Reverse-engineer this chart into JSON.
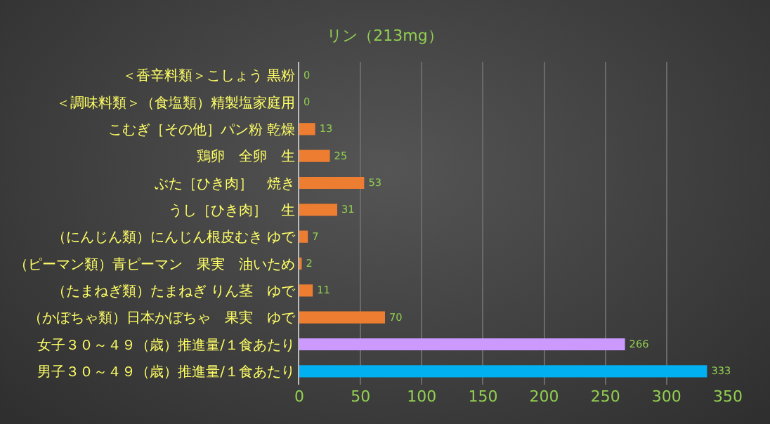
{
  "chart_data": {
    "type": "bar",
    "orientation": "horizontal",
    "title": "リン（213mg）",
    "categories": [
      "＜香辛料類＞こしょう 黒粉",
      "＜調味料類＞（食塩類）精製塩家庭用",
      "こむぎ［その他］パン粉 乾燥",
      "鶏卵　全卵　生",
      "ぶた［ひき肉］　焼き",
      "うし［ひき肉］　生",
      "（にんじん類）にんじん根皮むき ゆで",
      "（ピーマン類）青ピーマン　果実　油いため",
      "（たまねぎ類）たまねぎ りん茎　ゆで",
      "（かぼちゃ類）日本かぼちゃ　果実　ゆで",
      "女子３０～４９（歳）推進量/１食あたり",
      "男子３０～４９（歳）推進量/１食あたり"
    ],
    "values": [
      0,
      0,
      13,
      25,
      53,
      31,
      7,
      2,
      11,
      70,
      266,
      333
    ],
    "colors": [
      "#ed7d31",
      "#ed7d31",
      "#ed7d31",
      "#ed7d31",
      "#ed7d31",
      "#ed7d31",
      "#ed7d31",
      "#ed7d31",
      "#ed7d31",
      "#ed7d31",
      "#cc99ff",
      "#00b0f0"
    ],
    "xlim": [
      0,
      350
    ],
    "xticks": [
      0,
      50,
      100,
      150,
      200,
      250,
      300,
      350
    ],
    "grid": "x",
    "data_labels": true
  }
}
